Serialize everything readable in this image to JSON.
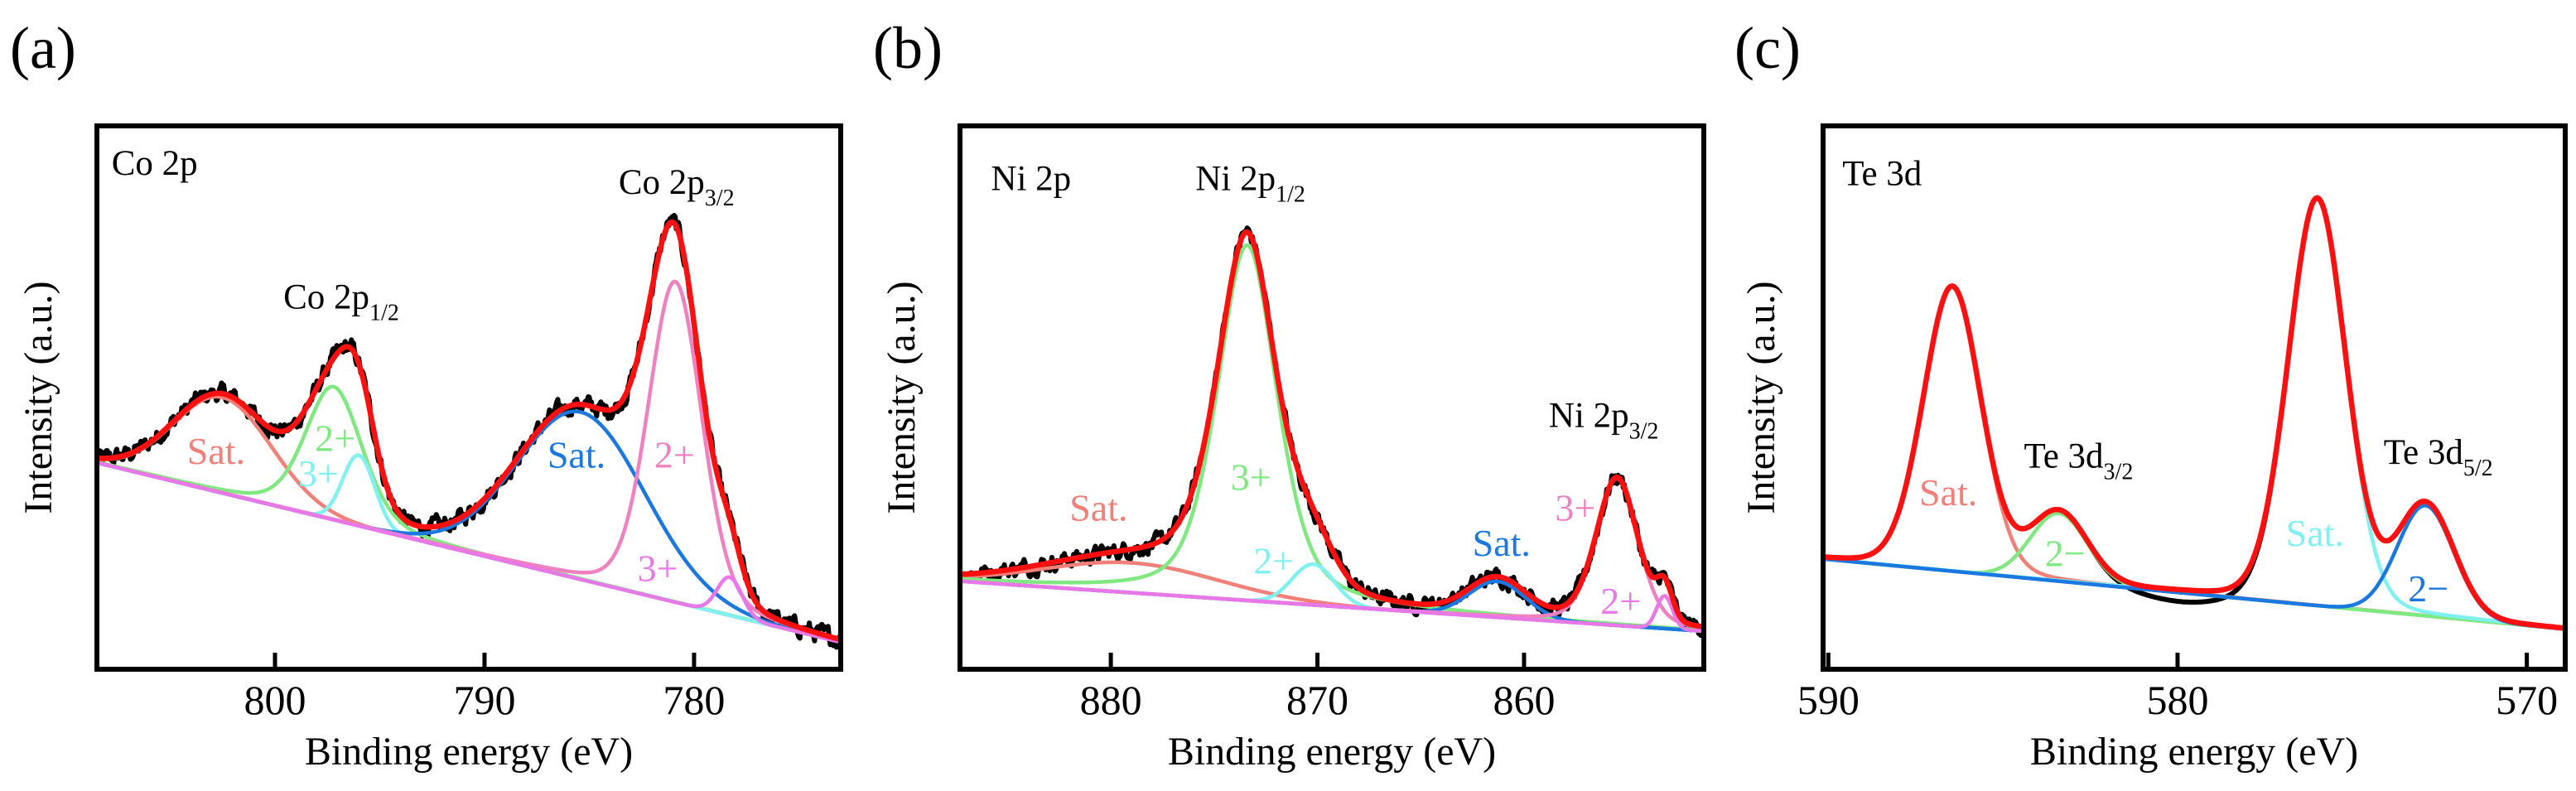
{
  "chart_data": [
    {
      "type": "line",
      "panel_label": "(a)",
      "title": "Co 2p",
      "xlabel": "Binding energy (eV)",
      "ylabel": "Intensity (a.u.)",
      "xlim": [
        808.5,
        773
      ],
      "ylim": [
        0,
        100
      ],
      "xticks": [
        800,
        790,
        780
      ],
      "grid": false,
      "baseline": {
        "x": [
          808.5,
          773
        ],
        "y": [
          38,
          5
        ]
      },
      "envelope_color": "#ff1010",
      "data_color": "#000000",
      "data_noise": 1.3,
      "title_pos": [
        807.8,
        91
      ],
      "peak_labels": [
        {
          "text": "Co 2p",
          "sub": "1/2",
          "pos": [
            799.6,
            66.4
          ]
        },
        {
          "text": "Co 2p",
          "sub": "3/2",
          "pos": [
            783.6,
            87.5
          ]
        }
      ],
      "components": [
        {
          "label": "Sat.",
          "center": 802.5,
          "fwhm": 5.5,
          "amp": 17.6,
          "eta": 0,
          "color": "#f08078",
          "label_pos": [
            804.2,
            37.8
          ]
        },
        {
          "label": "2+",
          "center": 797.2,
          "fwhm": 3.2,
          "amp": 24.5,
          "eta": 0.3,
          "color": "#80e880",
          "label_pos": [
            798.1,
            40.2
          ]
        },
        {
          "label": "3+",
          "center": 796.0,
          "fwhm": 1.8,
          "amp": 13,
          "eta": 0,
          "color": "#80f0f0",
          "label_pos": [
            798.9,
            33.7
          ]
        },
        {
          "label": "Sat.",
          "center": 785.4,
          "fwhm": 7.2,
          "amp": 30.8,
          "eta": 0,
          "color": "#1a78e0",
          "label_pos": [
            787.0,
            37.1
          ]
        },
        {
          "label": "2+",
          "center": 780.9,
          "fwhm": 3.0,
          "amp": 59,
          "eta": 0.2,
          "color": "#f080c0",
          "label_pos": [
            781.9,
            37.1
          ]
        },
        {
          "label": "3+",
          "center": 778.3,
          "fwhm": 1.4,
          "amp": 7,
          "eta": 0,
          "color": "#e878e8",
          "label_pos": [
            782.7,
            16.2
          ]
        }
      ],
      "data_offsets": []
    },
    {
      "type": "line",
      "panel_label": "(b)",
      "title": "Ni 2p",
      "xlabel": "Binding energy (eV)",
      "ylabel": "Intensity (a.u.)",
      "xlim": [
        887.3,
        851.3
      ],
      "ylim": [
        0,
        100
      ],
      "xticks": [
        880,
        870,
        860
      ],
      "grid": false,
      "baseline": {
        "x": [
          887.3,
          851.3
        ],
        "y": [
          16.2,
          7
        ]
      },
      "envelope_color": "#ff1010",
      "data_color": "#000000",
      "data_noise": 1.2,
      "title_pos": [
        885.8,
        88.2
      ],
      "peak_labels": [
        {
          "text": "Ni 2p",
          "sub": "1/2",
          "pos": [
            875.9,
            88.2
          ]
        },
        {
          "text": "Ni 2p",
          "sub": "3/2",
          "pos": [
            858.8,
            44.6
          ]
        }
      ],
      "components": [
        {
          "label": "Sat.",
          "center": 879.0,
          "fwhm": 10,
          "amp": 5.5,
          "eta": 0,
          "color": "#f08078",
          "label_pos": [
            882.0,
            27.4
          ]
        },
        {
          "label": "3+",
          "center": 873.4,
          "fwhm": 3.4,
          "amp": 65.4,
          "eta": 0.45,
          "color": "#80e880",
          "label_pos": [
            874.2,
            33
          ]
        },
        {
          "label": "2+",
          "center": 870.2,
          "fwhm": 2.4,
          "amp": 7.5,
          "eta": 0,
          "color": "#80f0f0",
          "label_pos": [
            873.1,
            17.6
          ]
        },
        {
          "label": "Sat.",
          "center": 861.3,
          "fwhm": 3.2,
          "amp": 6.6,
          "eta": 0,
          "color": "#1a78e0",
          "label_pos": [
            862.5,
            20.9
          ]
        },
        {
          "label": "3+",
          "center": 855.5,
          "fwhm": 2.4,
          "amp": 27,
          "eta": 0.3,
          "color": "#f080c0",
          "label_pos": [
            858.5,
            27.4
          ]
        },
        {
          "label": "2+",
          "center": 853.2,
          "fwhm": 0.9,
          "amp": 6,
          "eta": 0,
          "color": "#e878e8",
          "label_pos": [
            856.3,
            10.2
          ]
        }
      ],
      "data_offsets": []
    },
    {
      "type": "line",
      "panel_label": "(c)",
      "title": "Te 3d",
      "xlabel": "Binding energy (eV)",
      "ylabel": "Intensity (a.u.)",
      "xlim": [
        590.15,
        568.9
      ],
      "ylim": [
        0,
        100
      ],
      "xticks": [
        590,
        580,
        570
      ],
      "grid": false,
      "baseline": {
        "x": [
          590.15,
          568.9
        ],
        "y": [
          20.3,
          7.4
        ]
      },
      "envelope_color": "#ff1010",
      "data_color": "#000000",
      "data_noise": 0,
      "title_pos": [
        589.6,
        89.1
      ],
      "peak_labels": [
        {
          "text": "Te 3d",
          "sub": "3/2",
          "pos": [
            584.4,
            37.1
          ]
        },
        {
          "text": "Te 3d",
          "sub": "5/2",
          "pos": [
            574.1,
            37.8
          ]
        }
      ],
      "components": [
        {
          "label": "Sat.",
          "center": 586.45,
          "fwhm": 1.95,
          "amp": 52.4,
          "eta": 0.1,
          "color": "#f08078",
          "label_pos": [
            587.4,
            30.2
          ]
        },
        {
          "label": "2−",
          "center": 583.4,
          "fwhm": 1.9,
          "amp": 12.5,
          "eta": 0,
          "color": "#80e880",
          "label_pos": [
            583.8,
            19
          ]
        },
        {
          "label": "Sat.",
          "center": 576.0,
          "fwhm": 1.95,
          "amp": 75,
          "eta": 0.1,
          "color": "#80f0f0",
          "label_pos": [
            576.9,
            22.7
          ]
        },
        {
          "label": "2−",
          "center": 572.9,
          "fwhm": 1.9,
          "amp": 20.3,
          "eta": 0,
          "color": "#1a78e0",
          "label_pos": [
            573.4,
            12.5
          ]
        }
      ],
      "data_offsets": [
        {
          "center": 579.8,
          "fwhm": 3.0,
          "amp": -2.2
        }
      ]
    }
  ]
}
